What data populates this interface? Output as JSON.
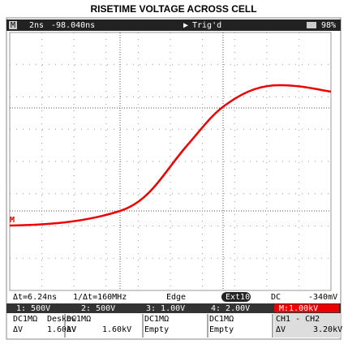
{
  "title": "RISETIME VOLTAGE ACROSS CELL",
  "top_bar": {
    "mode": "M",
    "timebase": "2ns",
    "position": "-98.040ns",
    "trigger": "Trig'd",
    "battery": "98%"
  },
  "marker": "M",
  "status": {
    "delta_t": "Δt=6.24ns",
    "inv_delta_t": "1/Δt=160MHz",
    "trigger_type": "Edge",
    "source": "Ext10",
    "coupling": "DC",
    "level": "-340mV"
  },
  "channels": [
    "1: 500V",
    "2: 500V",
    "3: 1.00V",
    "4: 2.00V",
    "M:1.00kV"
  ],
  "rows": [
    [
      "DC1MΩ",
      "Deskew",
      "DC1MΩ",
      "",
      "DC1MΩ",
      "",
      "DC1MΩ",
      "",
      "CH1 - CH2",
      ""
    ],
    [
      "ΔV",
      "1.60kV",
      "ΔV",
      "1.60kV",
      "Empty",
      "",
      "Empty",
      "",
      "ΔV",
      "3.20kV"
    ]
  ]
}
